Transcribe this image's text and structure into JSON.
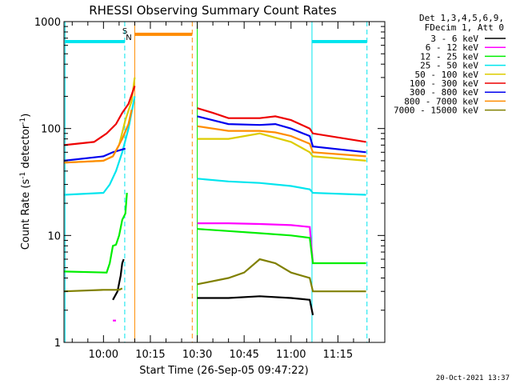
{
  "chart_data": {
    "type": "line",
    "title": "RHESSI Observing Summary Count Rates",
    "xlabel": "Start Time (26-Sep-05 09:47:22)",
    "ylabel": "Count Rate (s",
    "ylabel_sup1": "-1",
    "ylabel_mid": " detector",
    "ylabel_sup2": "-1",
    "ylabel_end": ")",
    "yscale": "log",
    "ylim": [
      1,
      1000
    ],
    "xlim_minutes": [
      587.37,
      690
    ],
    "yticks": [
      {
        "value": 1,
        "label": "1"
      },
      {
        "value": 10,
        "label": "10"
      },
      {
        "value": 100,
        "label": "100"
      },
      {
        "value": 1000,
        "label": "1000"
      }
    ],
    "xticks": [
      {
        "value": 600,
        "label": "10:00"
      },
      {
        "value": 615,
        "label": "10:15"
      },
      {
        "value": 630,
        "label": "10:30"
      },
      {
        "value": 645,
        "label": "10:45"
      },
      {
        "value": 660,
        "label": "11:00"
      },
      {
        "value": 675,
        "label": "11:15"
      }
    ],
    "legend": {
      "placement": "right",
      "header": [
        "Det 1,3,4,5,6,9,",
        "FDecim 1, Att 0"
      ]
    },
    "timestamp": "20-Oct-2021 13:37",
    "markers": {
      "S": "S",
      "N": "N"
    },
    "saa_bar_color": "#ff8c00",
    "night_bar_color": "#00e5ee",
    "series": [
      {
        "name": "3 - 6 keV",
        "color": "#000000",
        "segments": [
          [
            [
              603.0,
              2.5
            ],
            [
              604.5,
              3.0
            ],
            [
              605.5,
              4.2
            ],
            [
              606.0,
              5.5
            ],
            [
              606.5,
              6.0
            ]
          ],
          [
            [
              630.0,
              2.6
            ],
            [
              640,
              2.6
            ],
            [
              650,
              2.7
            ],
            [
              660,
              2.6
            ],
            [
              666,
              2.5
            ],
            [
              667,
              1.8
            ]
          ]
        ]
      },
      {
        "name": "6 - 12 keV",
        "color": "#ff00ff",
        "segments": [
          [
            [
              603.0,
              1.6
            ],
            [
              604.0,
              1.6
            ]
          ],
          [
            [
              630.0,
              13.0
            ],
            [
              640,
              13.0
            ],
            [
              650,
              12.8
            ],
            [
              660,
              12.5
            ],
            [
              666,
              12.0
            ],
            [
              667,
              5.5
            ]
          ]
        ]
      },
      {
        "name": "12 - 25 keV",
        "color": "#00ee00",
        "segments": [
          [
            [
              587.4,
              4.6
            ],
            [
              601,
              4.5
            ],
            [
              602,
              5.5
            ],
            [
              603,
              8
            ],
            [
              604,
              8.2
            ],
            [
              605,
              10
            ],
            [
              606,
              14
            ],
            [
              607,
              16
            ],
            [
              607.5,
              25
            ]
          ],
          [
            [
              630.0,
              11.5
            ],
            [
              640,
              11.0
            ],
            [
              650,
              10.5
            ],
            [
              660,
              10.0
            ],
            [
              666,
              9.5
            ],
            [
              667,
              5.5
            ],
            [
              684,
              5.5
            ]
          ]
        ]
      },
      {
        "name": "25 - 50 keV",
        "color": "#00e5ee",
        "segments": [
          [
            [
              587.4,
              24
            ],
            [
              600,
              25
            ],
            [
              602,
              30
            ],
            [
              604,
              40
            ],
            [
              606,
              60
            ],
            [
              608,
              100
            ],
            [
              610,
              200
            ]
          ],
          [
            [
              630.0,
              34
            ],
            [
              640,
              32
            ],
            [
              650,
              31
            ],
            [
              660,
              29
            ],
            [
              666,
              27
            ],
            [
              667,
              25
            ],
            [
              684,
              24
            ]
          ]
        ]
      },
      {
        "name": "50 - 100 keV",
        "color": "#ddcc00",
        "segments": [
          [
            [
              587.4,
              48
            ],
            [
              600,
              50
            ],
            [
              603,
              55
            ],
            [
              605,
              70
            ],
            [
              607,
              120
            ],
            [
              609,
              180
            ],
            [
              610,
              300
            ]
          ],
          [
            [
              630.0,
              80
            ],
            [
              640,
              80
            ],
            [
              650,
              90
            ],
            [
              660,
              75
            ],
            [
              666,
              60
            ],
            [
              667,
              55
            ],
            [
              684,
              50
            ]
          ]
        ]
      },
      {
        "name": "100 - 300 keV",
        "color": "#ee0000",
        "segments": [
          [
            [
              587.4,
              70
            ],
            [
              597,
              75
            ],
            [
              601,
              90
            ],
            [
              604,
              110
            ],
            [
              606,
              140
            ],
            [
              608,
              170
            ],
            [
              610,
              250
            ]
          ],
          [
            [
              630.0,
              155
            ],
            [
              635,
              140
            ],
            [
              640,
              125
            ],
            [
              650,
              125
            ],
            [
              655,
              130
            ],
            [
              660,
              120
            ],
            [
              666,
              100
            ],
            [
              667,
              90
            ],
            [
              684,
              75
            ]
          ]
        ]
      },
      {
        "name": "300 - 800 keV",
        "color": "#0000ee",
        "segments": [
          [
            [
              587.4,
              50
            ],
            [
              600,
              55
            ],
            [
              603,
              60
            ],
            [
              607,
              65
            ]
          ],
          [
            [
              630.0,
              130
            ],
            [
              640,
              110
            ],
            [
              650,
              108
            ],
            [
              655,
              110
            ],
            [
              660,
              100
            ],
            [
              666,
              85
            ],
            [
              667,
              68
            ],
            [
              684,
              60
            ]
          ]
        ]
      },
      {
        "name": "800 - 7000 keV",
        "color": "#ff8c00",
        "segments": [
          [
            [
              587.4,
              48
            ],
            [
              600,
              50
            ],
            [
              603,
              55
            ],
            [
              606,
              80
            ],
            [
              608,
              110
            ],
            [
              609,
              150
            ]
          ],
          [
            [
              630.0,
              105
            ],
            [
              640,
              95
            ],
            [
              650,
              95
            ],
            [
              655,
              92
            ],
            [
              660,
              85
            ],
            [
              666,
              72
            ],
            [
              667,
              60
            ],
            [
              684,
              55
            ]
          ]
        ]
      },
      {
        "name": "7000 - 15000 keV",
        "color": "#808000",
        "segments": [
          [
            [
              587.4,
              3.0
            ],
            [
              600,
              3.1
            ],
            [
              605,
              3.1
            ],
            [
              606,
              3.2
            ]
          ],
          [
            [
              630.0,
              3.5
            ],
            [
              640,
              4.0
            ],
            [
              645,
              4.5
            ],
            [
              650,
              6.0
            ],
            [
              655,
              5.5
            ],
            [
              660,
              4.5
            ],
            [
              666,
              4.0
            ],
            [
              667,
              3.0
            ],
            [
              684,
              3.0
            ]
          ]
        ]
      }
    ],
    "vertical_lines": [
      {
        "x": 587.7,
        "color": "#00e5ee",
        "style": "solid"
      },
      {
        "x": 606.8,
        "color": "#00e5ee",
        "style": "dashed"
      },
      {
        "x": 610.0,
        "color": "#ff8c00",
        "style": "solid"
      },
      {
        "x": 628.4,
        "color": "#ff8c00",
        "style": "dashed"
      },
      {
        "x": 630.0,
        "color": "#00ee00",
        "style": "solid"
      },
      {
        "x": 666.7,
        "color": "#00e5ee",
        "style": "solid"
      },
      {
        "x": 684.3,
        "color": "#00e5ee",
        "style": "dashed"
      }
    ],
    "horizontal_bars": [
      {
        "x0": 587.7,
        "x1": 606.8,
        "y": 650,
        "color": "#00e5ee"
      },
      {
        "x0": 610.0,
        "x1": 628.4,
        "y": 760,
        "color": "#ff8c00"
      },
      {
        "x0": 666.7,
        "x1": 684.3,
        "y": 650,
        "color": "#00e5ee"
      }
    ]
  }
}
